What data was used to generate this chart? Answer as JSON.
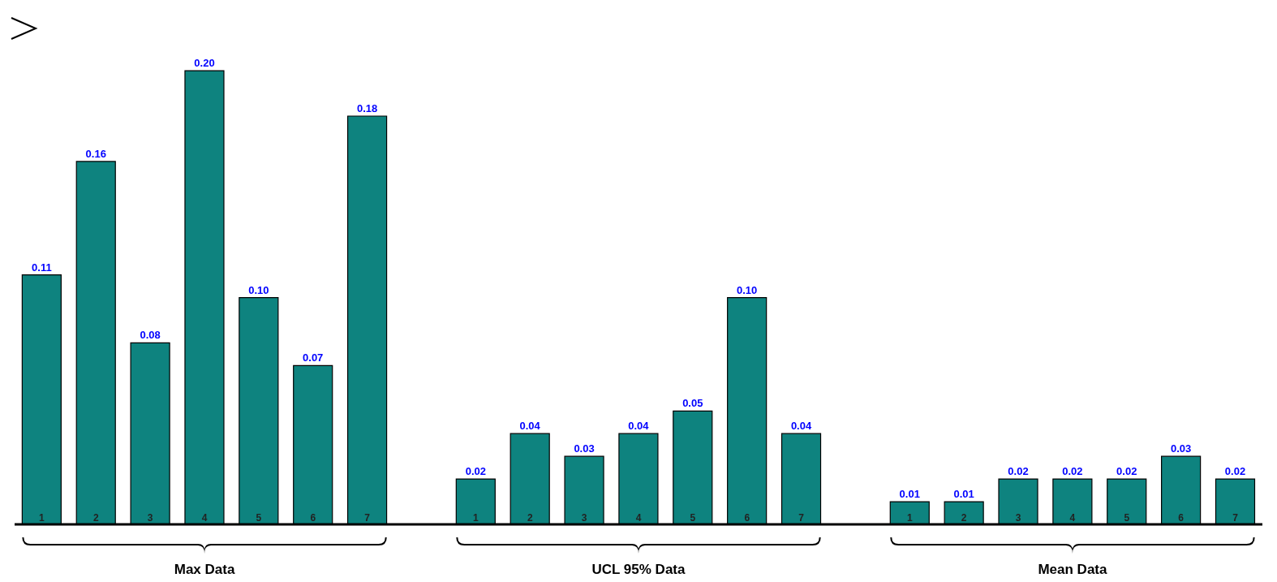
{
  "chart_data": {
    "type": "bar",
    "categories": [
      "1",
      "2",
      "3",
      "4",
      "5",
      "6",
      "7",
      null,
      "1",
      "2",
      "3",
      "4",
      "5",
      "6",
      "7",
      null,
      "1",
      "2",
      "3",
      "4",
      "5",
      "6",
      "7"
    ],
    "series": [
      {
        "name": "Max Data",
        "color": "#0e837f",
        "values": [
          0.11,
          0.16,
          0.08,
          0.2,
          0.1,
          0.07,
          0.18,
          null,
          null,
          null,
          null,
          null,
          null,
          null,
          null,
          null,
          null,
          null,
          null,
          null,
          null,
          null,
          null
        ],
        "value_labels": [
          "0.11",
          "0.16",
          "0.08",
          "0.20",
          "0.10",
          "0.07",
          "0.18",
          null,
          null,
          null,
          null,
          null,
          null,
          null,
          null,
          null,
          null,
          null,
          null,
          null,
          null,
          null,
          null
        ]
      },
      {
        "name": "UCL 95% Data",
        "color": "#0e837f",
        "values": [
          null,
          null,
          null,
          null,
          null,
          null,
          null,
          null,
          0.02,
          0.04,
          0.03,
          0.04,
          0.05,
          0.1,
          0.04,
          null,
          null,
          null,
          null,
          null,
          null,
          null,
          null
        ],
        "value_labels": [
          null,
          null,
          null,
          null,
          null,
          null,
          null,
          null,
          "0.02",
          "0.04",
          "0.03",
          "0.04",
          "0.05",
          "0.10",
          "0.04",
          null,
          null,
          null,
          null,
          null,
          null,
          null,
          null
        ]
      },
      {
        "name": "Mean Data",
        "color": "#0e837f",
        "values": [
          null,
          null,
          null,
          null,
          null,
          null,
          null,
          null,
          null,
          null,
          null,
          null,
          null,
          null,
          null,
          null,
          0.01,
          0.01,
          0.02,
          0.02,
          0.02,
          0.03,
          0.02
        ],
        "value_labels": [
          null,
          null,
          null,
          null,
          null,
          null,
          null,
          null,
          null,
          null,
          null,
          null,
          null,
          null,
          null,
          null,
          "0.01",
          "0.01",
          "0.02",
          "0.02",
          "0.02",
          "0.03",
          "0.02"
        ]
      }
    ],
    "grid": false,
    "legend": false
  }
}
